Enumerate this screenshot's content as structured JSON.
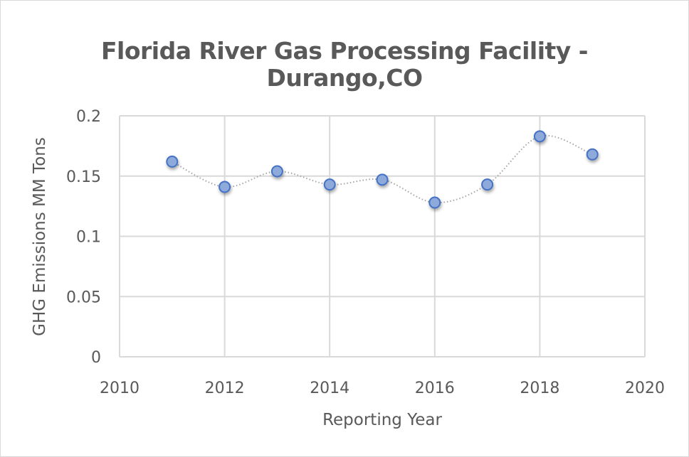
{
  "chart_data": {
    "type": "scatter",
    "title_line1": "Florida River Gas Processing Facility -",
    "title_line2": "Durango,CO",
    "xlabel": "Reporting Year",
    "ylabel": "GHG Emissions MM Tons",
    "xlim": [
      2010,
      2020
    ],
    "ylim": [
      0,
      0.2
    ],
    "x_ticks": [
      2010,
      2012,
      2014,
      2016,
      2018,
      2020
    ],
    "y_ticks": [
      0,
      0.05,
      0.1,
      0.15,
      0.2
    ],
    "y_tick_labels": [
      "0",
      "0.05",
      "0.1",
      "0.15",
      "0.2"
    ],
    "x_tick_labels": [
      "2010",
      "2012",
      "2014",
      "2016",
      "2018",
      "2020"
    ],
    "grid": true,
    "series": [
      {
        "name": "GHG Emissions",
        "x": [
          2011,
          2012,
          2013,
          2014,
          2015,
          2016,
          2017,
          2018,
          2019
        ],
        "y": [
          0.162,
          0.141,
          0.154,
          0.143,
          0.147,
          0.128,
          0.143,
          0.183,
          0.168
        ],
        "marker_fill": "#8eaadb",
        "marker_edge": "#4472c4",
        "line_color": "#a6a6a6",
        "line_style": "dotted smooth"
      }
    ]
  }
}
